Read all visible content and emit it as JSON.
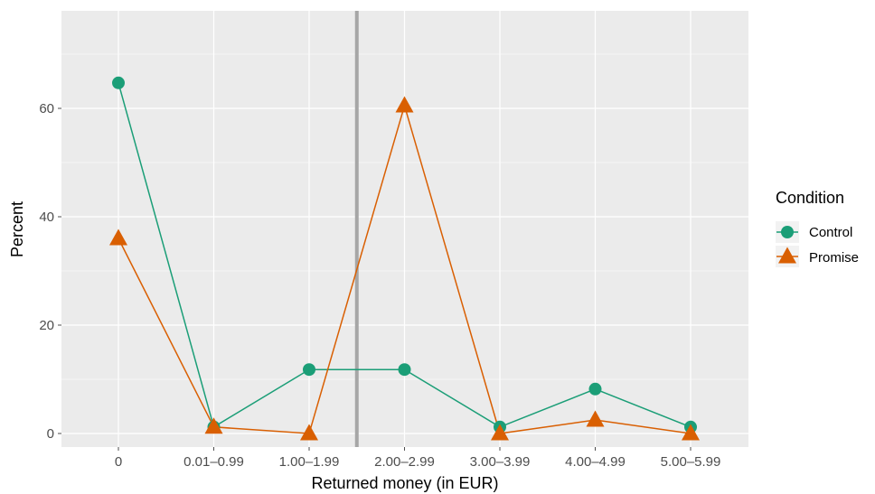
{
  "chart_data": {
    "type": "line",
    "xlabel": "Returned money (in EUR)",
    "ylabel": "Percent",
    "categories": [
      "0",
      "0.01–0.99",
      "1.00–1.99",
      "2.00–2.99",
      "3.00–3.99",
      "4.00–4.99",
      "5.00–5.99"
    ],
    "y_ticks": [
      0,
      20,
      40,
      60
    ],
    "ylim": [
      -2.5,
      78
    ],
    "vertical_reference_between": [
      "1.00–1.99",
      "2.00–2.99"
    ],
    "grid": true,
    "legend": {
      "title": "Condition",
      "placement": "right"
    },
    "series": [
      {
        "name": "Control",
        "marker": "circle",
        "color": "#1b9e77",
        "values": [
          64.7,
          1.2,
          11.8,
          11.8,
          1.2,
          8.2,
          1.2
        ]
      },
      {
        "name": "Promise",
        "marker": "triangle",
        "color": "#d95f02",
        "values": [
          36.0,
          1.2,
          0.0,
          60.5,
          0.0,
          2.5,
          0.0
        ]
      }
    ]
  }
}
